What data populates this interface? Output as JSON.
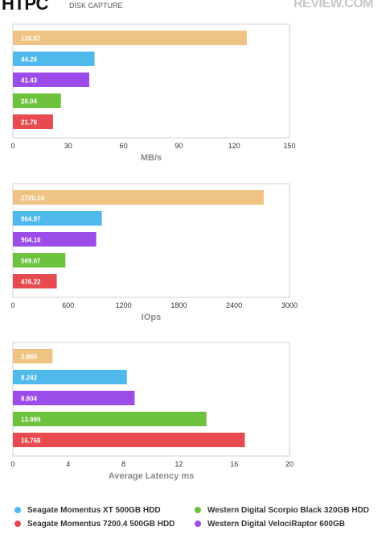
{
  "header": {
    "title": "HTPC",
    "subtitle": "DISK CAPTURE",
    "brand": "REVIEW.COM"
  },
  "colors": {
    "seagate_xt": "#50b9ec",
    "seagate_7200": "#e84b4f",
    "wd_scorpio": "#6cc13d",
    "wd_velociraptor": "#9c4ce8",
    "top": "#efc383"
  },
  "chart_data": [
    {
      "type": "bar",
      "orientation": "horizontal",
      "xlabel": "MB/s",
      "xlim": [
        0,
        150
      ],
      "ticks": [
        "0",
        "30",
        "60",
        "90",
        "120",
        "150"
      ],
      "bars": [
        {
          "value": 126.87,
          "label": "126.87",
          "color": "#efc383"
        },
        {
          "value": 44.26,
          "label": "44.26",
          "color": "#50b9ec"
        },
        {
          "value": 41.43,
          "label": "41.43",
          "color": "#9c4ce8"
        },
        {
          "value": 26.04,
          "label": "26.04",
          "color": "#6cc13d"
        },
        {
          "value": 21.76,
          "label": "21.76",
          "color": "#e84b4f"
        }
      ]
    },
    {
      "type": "bar",
      "orientation": "horizontal",
      "xlabel": "IOps",
      "xlim": [
        0,
        3000
      ],
      "ticks": [
        "0",
        "600",
        "1200",
        "1800",
        "2400",
        "3000"
      ],
      "bars": [
        {
          "value": 2720.14,
          "label": "2720.14",
          "color": "#efc383"
        },
        {
          "value": 964.97,
          "label": "964.97",
          "color": "#50b9ec"
        },
        {
          "value": 904.1,
          "label": "904.10",
          "color": "#9c4ce8"
        },
        {
          "value": 569.67,
          "label": "569.67",
          "color": "#6cc13d"
        },
        {
          "value": 476.22,
          "label": "476.22",
          "color": "#e84b4f"
        }
      ]
    },
    {
      "type": "bar",
      "orientation": "horizontal",
      "xlabel": "Average Latency ms",
      "xlim": [
        0,
        20
      ],
      "ticks": [
        "0",
        "4",
        "8",
        "12",
        "16",
        "20"
      ],
      "bars": [
        {
          "value": 2.865,
          "label": "2.865",
          "color": "#efc383"
        },
        {
          "value": 8.242,
          "label": "8.242",
          "color": "#50b9ec"
        },
        {
          "value": 8.804,
          "label": "8.804",
          "color": "#9c4ce8"
        },
        {
          "value": 13.989,
          "label": "13.989",
          "color": "#6cc13d"
        },
        {
          "value": 16.768,
          "label": "16.768",
          "color": "#e84b4f"
        }
      ]
    }
  ],
  "legend": [
    {
      "label": "Seagate Momentus XT 500GB HDD",
      "color": "#50b9ec"
    },
    {
      "label": "Western Digital Scorpio Black 320GB HDD",
      "color": "#6cc13d"
    },
    {
      "label": "Seagate Momentus 7200.4 500GB HDD",
      "color": "#e84b4f"
    },
    {
      "label": "Western Digital VelociRaptor 600GB",
      "color": "#9c4ce8"
    }
  ]
}
